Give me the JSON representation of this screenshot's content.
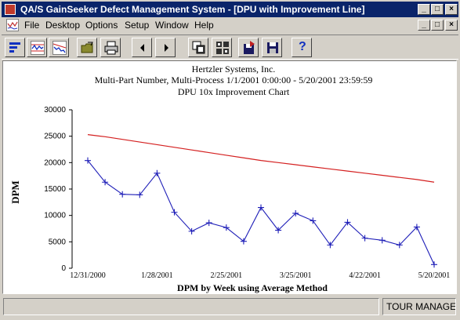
{
  "window": {
    "title": "QA/S GainSeeker Defect Management System - [DPU with Improvement Line]",
    "controls": {
      "minimize": "_",
      "maximize": "□",
      "close": "×"
    }
  },
  "menu": {
    "items": [
      {
        "label": "File"
      },
      {
        "label": "Desktop"
      },
      {
        "label": "Options"
      },
      {
        "label": "Setup"
      },
      {
        "label": "Window"
      },
      {
        "label": "Help"
      }
    ]
  },
  "toolbar": {
    "buttons": [
      {
        "icon": "bar-chart-icon"
      },
      {
        "icon": "run-chart-icon"
      },
      {
        "icon": "trend-chart-icon"
      },
      {
        "icon": "open-folder-icon"
      },
      {
        "icon": "printer-icon"
      },
      {
        "icon": "previous-arrow-icon"
      },
      {
        "icon": "next-arrow-icon"
      },
      {
        "icon": "copy-windows-icon"
      },
      {
        "icon": "grid-icon"
      },
      {
        "icon": "export-disk-icon"
      },
      {
        "icon": "save-disk-icon"
      },
      {
        "icon": "help-icon"
      }
    ],
    "help_label": "?"
  },
  "status": {
    "left": "",
    "right": "TOUR MANAGE"
  },
  "colors": {
    "titlebar": "#0a246a",
    "data_line": "#1f1fb8",
    "improvement_line": "#d42020"
  },
  "chart_data": {
    "type": "line",
    "title": "Hertzler Systems, Inc.",
    "subtitle": "Multi-Part Number, Multi-Process    1/1/2001 0:00:00 - 5/20/2001 23:59:59",
    "subtitle2": "DPU 10x Improvement Chart",
    "xlabel": "DPM by Week using Average Method",
    "ylabel": "DPM",
    "ylim": [
      0,
      30000
    ],
    "yticks": [
      0,
      5000,
      10000,
      15000,
      20000,
      25000,
      30000
    ],
    "xtick_labels": [
      "12/31/2000",
      "1/28/2001",
      "2/25/2001",
      "3/25/2001",
      "4/22/2001",
      "5/20/2001"
    ],
    "xtick_index": [
      0,
      4,
      8,
      12,
      16,
      20
    ],
    "series": [
      {
        "values": [
          20400,
          16300,
          14000,
          13900,
          18000,
          10600,
          7000,
          8600,
          7700,
          5100,
          11500,
          7200,
          10400,
          9000,
          4400,
          8700,
          5700,
          5300,
          4400,
          7800,
          700
        ]
      },
      {
        "values": [
          25300,
          24900,
          24400,
          23900,
          23400,
          22900,
          22400,
          21900,
          21400,
          20900,
          20400,
          20000,
          19600,
          19200,
          18800,
          18400,
          18000,
          17600,
          17200,
          16800,
          16300
        ]
      }
    ],
    "grid": false,
    "legend": "none"
  }
}
